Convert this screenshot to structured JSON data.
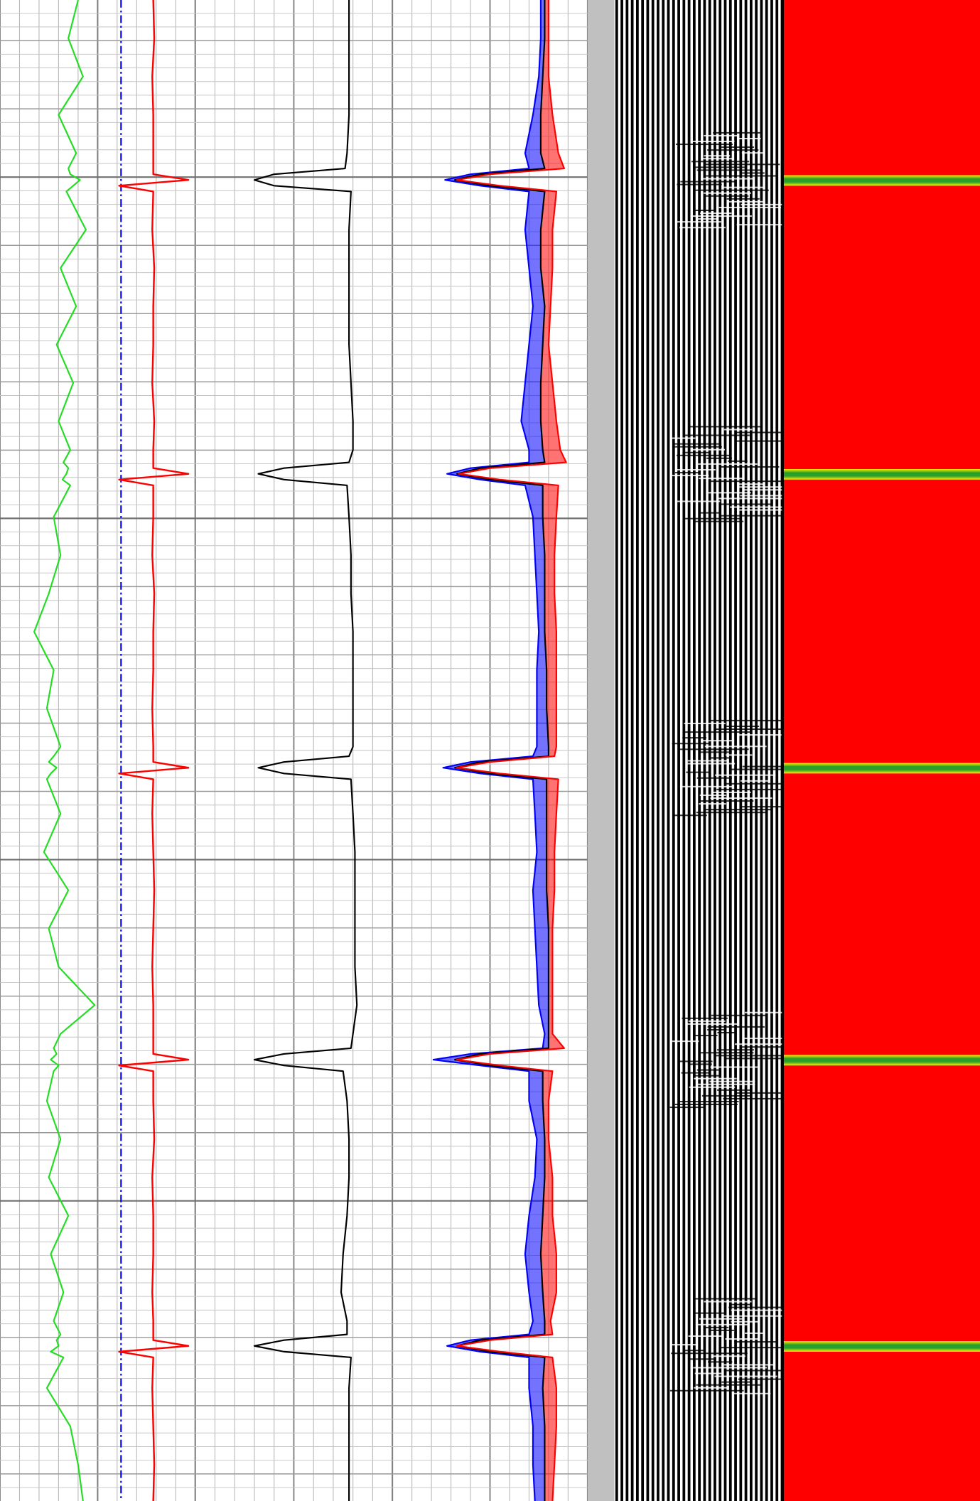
{
  "chart_data": [
    {
      "type": "line",
      "x": [
        0,
        40,
        80,
        120,
        160,
        176,
        182,
        188,
        194,
        200,
        240,
        280,
        320,
        360,
        400,
        440,
        470,
        483,
        489,
        495,
        501,
        507,
        540,
        580,
        620,
        660,
        700,
        740,
        780,
        790,
        796,
        802,
        808,
        814,
        850,
        890,
        930,
        970,
        1010,
        1050,
        1080,
        1095,
        1101,
        1107,
        1113,
        1119,
        1150,
        1190,
        1230,
        1270,
        1310,
        1350,
        1380,
        1394,
        1400,
        1406,
        1412,
        1418,
        1450,
        1490,
        1530,
        1568
      ],
      "xlim": [
        0,
        1568
      ],
      "ylim": [
        0,
        100
      ],
      "series": [
        {
          "color": "#22dd22",
          "values": [
            80,
            70,
            85,
            60,
            78,
            70,
            72,
            82,
            75,
            68,
            88,
            62,
            78,
            58,
            75,
            60,
            72,
            65,
            70,
            68,
            64,
            72,
            55,
            62,
            50,
            35,
            55,
            48,
            62,
            55,
            50,
            58,
            52,
            48,
            62,
            45,
            70,
            50,
            60,
            97,
            62,
            55,
            58,
            52,
            60,
            55,
            48,
            62,
            50,
            70,
            52,
            65,
            55,
            62,
            58,
            60,
            52,
            65,
            48,
            72,
            80,
            85
          ]
        }
      ]
    },
    {
      "type": "line",
      "x": [
        0,
        40,
        80,
        120,
        160,
        176,
        182,
        188,
        194,
        200,
        240,
        280,
        320,
        360,
        400,
        440,
        470,
        483,
        489,
        495,
        501,
        507,
        540,
        580,
        620,
        660,
        700,
        740,
        780,
        790,
        796,
        802,
        808,
        814,
        850,
        890,
        930,
        970,
        1010,
        1050,
        1080,
        1095,
        1101,
        1107,
        1113,
        1119,
        1150,
        1190,
        1230,
        1270,
        1310,
        1350,
        1380,
        1394,
        1400,
        1406,
        1412,
        1418,
        1450,
        1490,
        1530,
        1568
      ],
      "xlim": [
        0,
        1568
      ],
      "ylim": [
        0,
        100
      ],
      "series": [
        {
          "color": "#0000ff",
          "line_style": "dash-dot",
          "values": [
            24,
            24,
            24,
            24,
            24,
            24,
            24,
            24,
            24,
            24,
            24,
            24,
            24,
            24,
            24,
            24,
            24,
            24,
            24,
            24,
            24,
            24,
            24,
            24,
            24,
            24,
            24,
            24,
            24,
            24,
            24,
            24,
            24,
            24,
            24,
            24,
            24,
            24,
            24,
            24,
            24,
            24,
            24,
            24,
            24,
            24,
            24,
            24,
            24,
            24,
            24,
            24,
            24,
            24,
            24,
            24,
            24,
            24,
            24,
            24,
            24,
            24
          ]
        },
        {
          "color": "#ff0000",
          "values": [
            57,
            58,
            56,
            57,
            57,
            57,
            57,
            93,
            22,
            57,
            56,
            58,
            57,
            57,
            56,
            58,
            57,
            57,
            57,
            93,
            22,
            57,
            57,
            56,
            58,
            57,
            57,
            56,
            57,
            57,
            57,
            93,
            22,
            57,
            56,
            57,
            58,
            57,
            56,
            57,
            57,
            57,
            57,
            93,
            22,
            57,
            57,
            58,
            56,
            57,
            57,
            56,
            57,
            57,
            57,
            93,
            22,
            57,
            56,
            57,
            58,
            57
          ]
        }
      ]
    },
    {
      "type": "line",
      "x": [
        0,
        40,
        80,
        120,
        160,
        176,
        182,
        188,
        194,
        200,
        240,
        280,
        320,
        360,
        400,
        440,
        470,
        483,
        489,
        495,
        501,
        507,
        540,
        580,
        620,
        660,
        700,
        740,
        780,
        790,
        796,
        802,
        808,
        814,
        850,
        890,
        930,
        970,
        1010,
        1050,
        1080,
        1095,
        1101,
        1107,
        1113,
        1119,
        1150,
        1190,
        1230,
        1270,
        1310,
        1350,
        1380,
        1394,
        1400,
        1406,
        1412,
        1418,
        1450,
        1490,
        1530,
        1568
      ],
      "xlim": [
        0,
        1568
      ],
      "ylim": [
        0,
        100
      ],
      "series": [
        {
          "color": "#000000",
          "values": [
            78,
            78,
            78,
            78,
            77,
            76,
            40,
            30,
            40,
            79,
            78,
            78,
            78,
            78,
            79,
            80,
            80,
            78,
            45,
            32,
            45,
            77,
            78,
            79,
            79,
            80,
            80,
            80,
            80,
            78,
            45,
            32,
            45,
            79,
            80,
            81,
            81,
            81,
            81,
            82,
            80,
            79,
            45,
            30,
            45,
            75,
            77,
            78,
            78,
            77,
            75,
            74,
            77,
            77,
            45,
            30,
            45,
            79,
            78,
            78,
            78,
            78
          ]
        }
      ]
    },
    {
      "type": "area",
      "x": [
        0,
        40,
        80,
        120,
        160,
        176,
        182,
        188,
        194,
        200,
        240,
        280,
        320,
        360,
        400,
        440,
        470,
        483,
        489,
        495,
        501,
        507,
        540,
        580,
        620,
        660,
        700,
        740,
        780,
        790,
        796,
        802,
        808,
        814,
        850,
        890,
        930,
        970,
        1010,
        1050,
        1080,
        1095,
        1101,
        1107,
        1113,
        1119,
        1150,
        1190,
        1230,
        1270,
        1310,
        1350,
        1380,
        1394,
        1400,
        1406,
        1412,
        1418,
        1450,
        1490,
        1530,
        1568
      ],
      "xlim": [
        0,
        1568
      ],
      "ylim": [
        0,
        100
      ],
      "series": [
        {
          "color": "#0000ff",
          "values": [
            76,
            76,
            75,
            72,
            68,
            70,
            40,
            27,
            45,
            70,
            68,
            70,
            72,
            70,
            68,
            66,
            70,
            70,
            40,
            28,
            45,
            68,
            72,
            73,
            74,
            75,
            74,
            74,
            74,
            72,
            40,
            26,
            45,
            72,
            73,
            74,
            72,
            73,
            74,
            75,
            78,
            77,
            40,
            21,
            45,
            70,
            70,
            74,
            73,
            70,
            68,
            70,
            72,
            70,
            40,
            28,
            45,
            70,
            70,
            72,
            72,
            73
          ]
        },
        {
          "color": "#000000",
          "values": [
            78,
            78,
            77,
            76,
            76,
            78,
            45,
            32,
            50,
            78,
            76,
            76,
            78,
            77,
            76,
            76,
            77,
            78,
            45,
            33,
            50,
            77,
            77,
            78,
            78,
            78,
            79,
            79,
            80,
            80,
            45,
            32,
            50,
            79,
            79,
            79,
            79,
            80,
            80,
            80,
            80,
            80,
            45,
            32,
            50,
            77,
            77,
            78,
            78,
            77,
            76,
            77,
            78,
            78,
            45,
            33,
            50,
            78,
            77,
            78,
            78,
            78
          ]
        },
        {
          "color": "#ff0000",
          "values": [
            80,
            80,
            80,
            82,
            85,
            88,
            50,
            33,
            55,
            84,
            82,
            82,
            81,
            80,
            82,
            84,
            86,
            89,
            50,
            34,
            55,
            85,
            84,
            83,
            83,
            84,
            84,
            84,
            84,
            83,
            50,
            33,
            55,
            85,
            84,
            83,
            83,
            82,
            82,
            82,
            82,
            88,
            50,
            33,
            55,
            82,
            80,
            80,
            82,
            82,
            84,
            84,
            81,
            82,
            50,
            33,
            55,
            82,
            84,
            84,
            83,
            82
          ]
        }
      ]
    }
  ]
}
